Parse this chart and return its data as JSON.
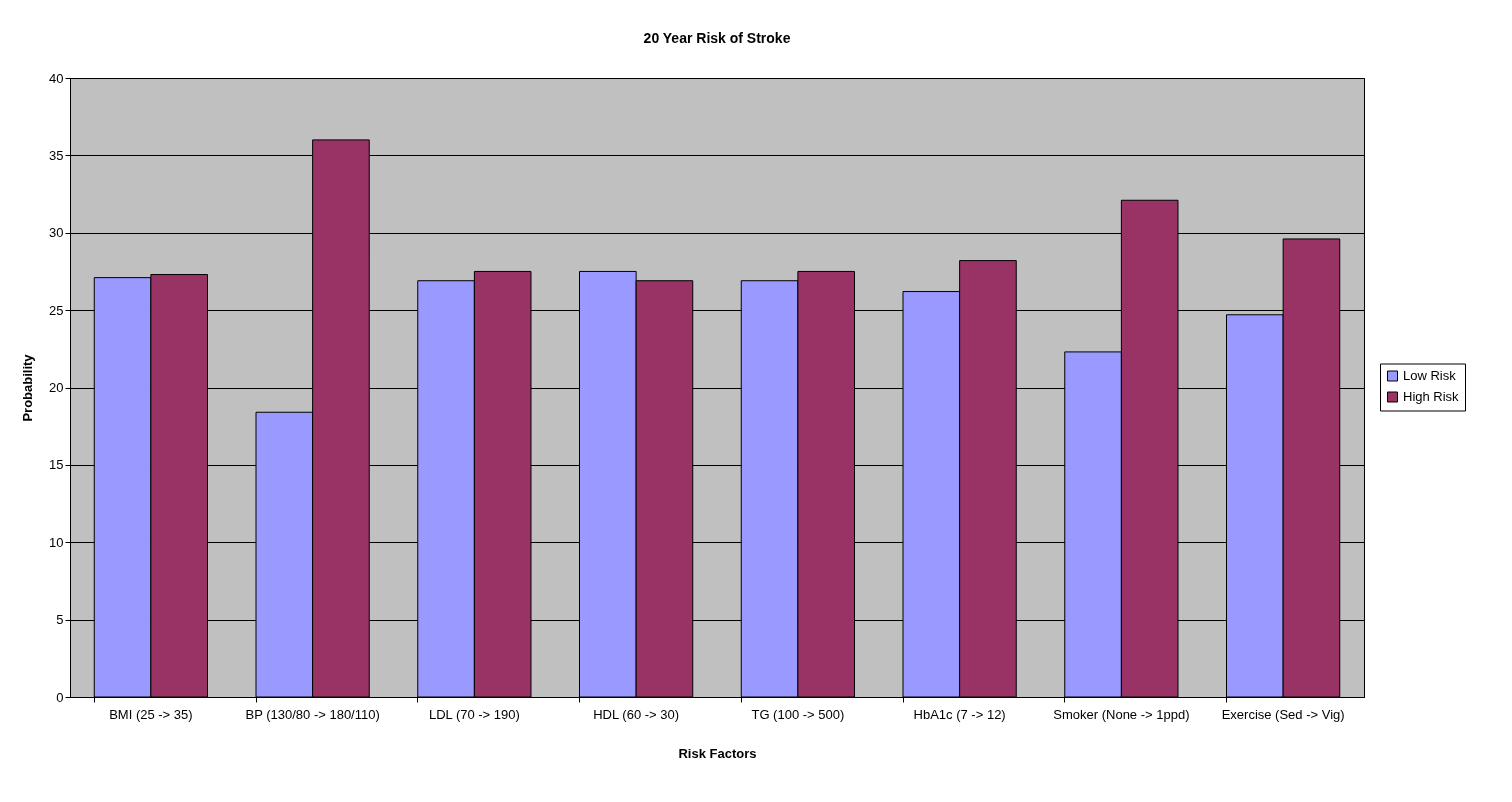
{
  "chart_data": {
    "type": "bar",
    "title": "20 Year Risk of Stroke",
    "xlabel": "Risk Factors",
    "ylabel": "Probability",
    "categories": [
      "BMI (25 -> 35)",
      "BP (130/80 -> 180/110)",
      "LDL (70 -> 190)",
      "HDL (60 -> 30)",
      "TG (100 -> 500)",
      "HbA1c (7 -> 12)",
      "Smoker (None -> 1ppd)",
      "Exercise (Sed -> Vig)"
    ],
    "series": [
      {
        "name": "Low Risk",
        "color": "#9999ff",
        "values": [
          27.1,
          18.4,
          26.9,
          27.5,
          26.9,
          26.2,
          22.3,
          24.7
        ]
      },
      {
        "name": "High Risk",
        "color": "#993366",
        "values": [
          27.3,
          36.0,
          27.5,
          26.9,
          27.5,
          28.2,
          32.1,
          29.6
        ]
      }
    ],
    "ylim": [
      0,
      40
    ],
    "yticks": [
      0,
      5,
      10,
      15,
      20,
      25,
      30,
      35,
      40
    ],
    "grid": "y",
    "legend": "right"
  }
}
